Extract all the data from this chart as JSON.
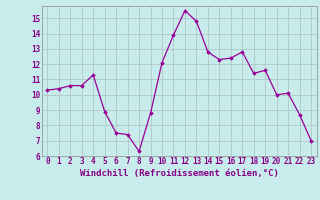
{
  "x": [
    0,
    1,
    2,
    3,
    4,
    5,
    6,
    7,
    8,
    9,
    10,
    11,
    12,
    13,
    14,
    15,
    16,
    17,
    18,
    19,
    20,
    21,
    22,
    23
  ],
  "y": [
    10.3,
    10.4,
    10.6,
    10.6,
    11.3,
    8.9,
    7.5,
    7.4,
    6.3,
    8.8,
    12.1,
    13.9,
    15.5,
    14.8,
    12.8,
    12.3,
    12.4,
    12.8,
    11.4,
    11.6,
    10.0,
    10.1,
    8.7,
    7.0
  ],
  "line_color": "#990099",
  "marker": "D",
  "marker_size": 1.8,
  "line_width": 0.9,
  "bg_color": "#c8ecec",
  "grid_color": "#b0c8c8",
  "xlabel": "Windchill (Refroidissement éolien,°C)",
  "xlabel_fontsize": 6.5,
  "tick_fontsize": 5.5,
  "ylim": [
    6,
    15.8
  ],
  "xlim": [
    -0.5,
    23.5
  ],
  "yticks": [
    6,
    7,
    8,
    9,
    10,
    11,
    12,
    13,
    14,
    15
  ],
  "xticks": [
    0,
    1,
    2,
    3,
    4,
    5,
    6,
    7,
    8,
    9,
    10,
    11,
    12,
    13,
    14,
    15,
    16,
    17,
    18,
    19,
    20,
    21,
    22,
    23
  ],
  "tick_color": "#880088",
  "label_color": "#880088",
  "spine_color": "#888888"
}
